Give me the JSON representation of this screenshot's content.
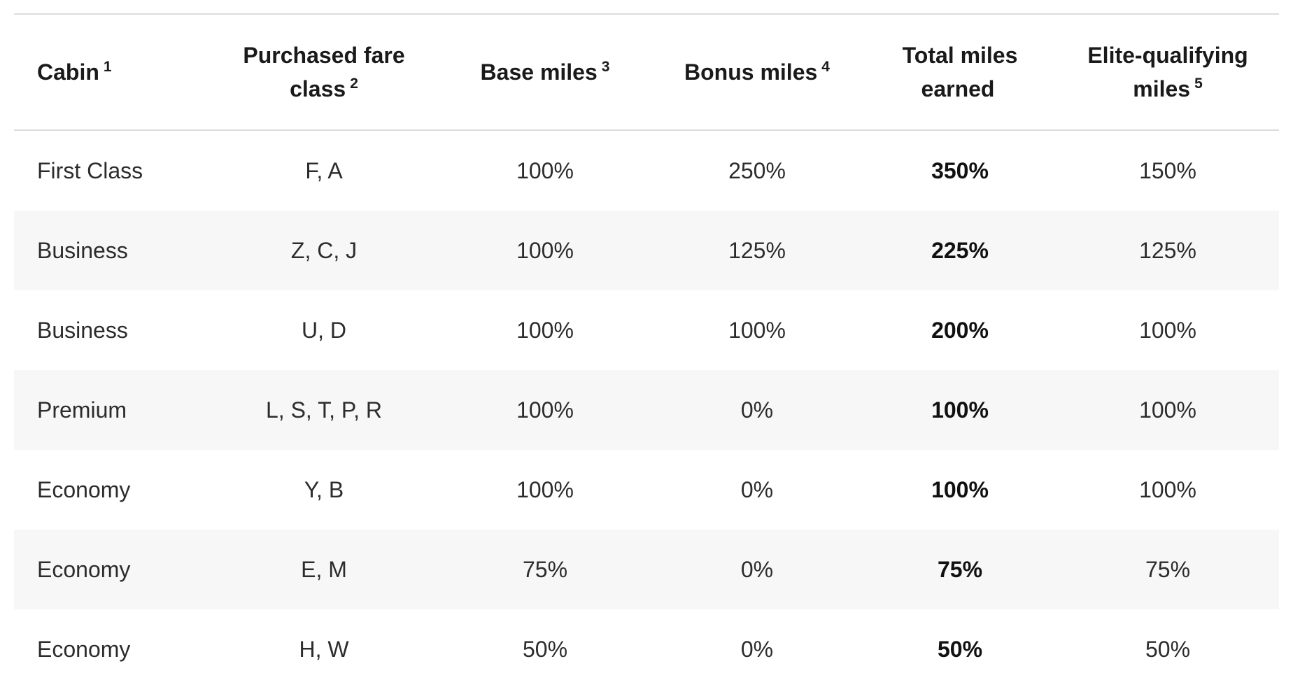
{
  "table": {
    "headers": [
      {
        "label": "Cabin",
        "note": "1"
      },
      {
        "label": "Purchased fare class",
        "note": "2"
      },
      {
        "label": "Base miles",
        "note": "3"
      },
      {
        "label": "Bonus miles",
        "note": "4"
      },
      {
        "label": "Total miles earned",
        "note": ""
      },
      {
        "label": "Elite-qualifying miles",
        "note": "5"
      }
    ],
    "rows": [
      {
        "cabin": "First Class",
        "fare": "F, A",
        "base": "100%",
        "bonus": "250%",
        "total": "350%",
        "elite": "150%"
      },
      {
        "cabin": "Business",
        "fare": "Z, C, J",
        "base": "100%",
        "bonus": "125%",
        "total": "225%",
        "elite": "125%"
      },
      {
        "cabin": "Business",
        "fare": "U, D",
        "base": "100%",
        "bonus": "100%",
        "total": "200%",
        "elite": "100%"
      },
      {
        "cabin": "Premium",
        "fare": "L, S, T, P, R",
        "base": "100%",
        "bonus": "0%",
        "total": "100%",
        "elite": "100%"
      },
      {
        "cabin": "Economy",
        "fare": "Y, B",
        "base": "100%",
        "bonus": "0%",
        "total": "100%",
        "elite": "100%"
      },
      {
        "cabin": "Economy",
        "fare": "E, M",
        "base": "75%",
        "bonus": "0%",
        "total": "75%",
        "elite": "75%"
      },
      {
        "cabin": "Economy",
        "fare": "H, W",
        "base": "50%",
        "bonus": "0%",
        "total": "50%",
        "elite": "50%"
      }
    ]
  },
  "colors": {
    "stripe": "#f7f7f7",
    "rule": "#dcdcdc",
    "text": "#2c2c2c",
    "heading": "#1a1a1a"
  }
}
